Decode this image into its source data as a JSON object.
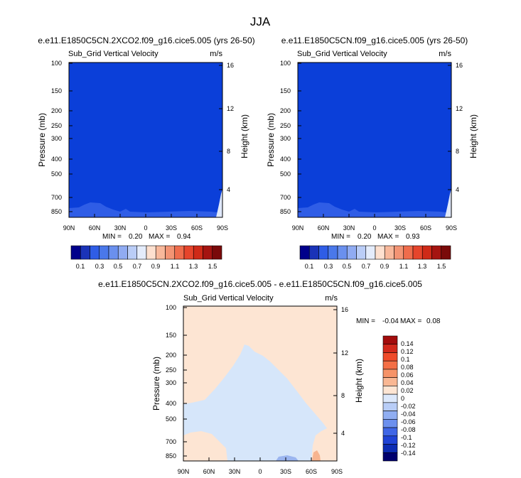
{
  "figure_title": "JJA",
  "colors": {
    "fill_top": "#0b3fd9",
    "fill_low_light": "#2f5de6",
    "fill_low_lighter": "#4a78ea",
    "diff_background": "#fde5d3",
    "diff_negative": "#d6e6fa",
    "diff_neg_deep": "#9bb5ef",
    "diff_pos_deep": "#f7b48f"
  },
  "chart_data": [
    {
      "type": "heatmap",
      "title": "e.e11.E1850C5CN.2XCO2.f09_g16.cice5.005 (yrs 26-50)",
      "subtitle": "Sub_Grid Vertical Velocity",
      "units": "m/s",
      "ylabel": "Pressure (mb)",
      "y2label": "Height (km)",
      "x_ticks": [
        "90N",
        "60N",
        "30N",
        "0",
        "30S",
        "60S",
        "90S"
      ],
      "y_ticks": [
        "100",
        "150",
        "200",
        "250",
        "300",
        "400",
        "500",
        "700",
        "850"
      ],
      "y2_ticks": [
        "16",
        "12",
        "8",
        "4"
      ],
      "stats": {
        "min_label": "MIN =",
        "min": "0.20",
        "max_label": "MAX =",
        "max": "0.94"
      },
      "dominant_value": 0.2,
      "colorbar_labels": [
        "0.1",
        "0.3",
        "0.5",
        "0.7",
        "0.9",
        "1.1",
        "1.3",
        "1.5"
      ]
    },
    {
      "type": "heatmap",
      "title": "e.e11.E1850C5CN.f09_g16.cice5.005 (yrs 26-50)",
      "subtitle": "Sub_Grid Vertical Velocity",
      "units": "m/s",
      "ylabel": "Pressure (mb)",
      "y2label": "Height (km)",
      "x_ticks": [
        "90N",
        "60N",
        "30N",
        "0",
        "30S",
        "60S",
        "90S"
      ],
      "y_ticks": [
        "100",
        "150",
        "200",
        "250",
        "300",
        "400",
        "500",
        "700",
        "850"
      ],
      "y2_ticks": [
        "16",
        "12",
        "8",
        "4"
      ],
      "stats": {
        "min_label": "MIN =",
        "min": "0.20",
        "max_label": "MAX =",
        "max": "0.93"
      },
      "dominant_value": 0.2,
      "colorbar_labels": [
        "0.1",
        "0.3",
        "0.5",
        "0.7",
        "0.9",
        "1.1",
        "1.3",
        "1.5"
      ]
    },
    {
      "type": "heatmap",
      "title": "e.e11.E1850C5CN.2XCO2.f09_g16.cice5.005 - e.e11.E1850C5CN.f09_g16.cice5.005",
      "subtitle": "Sub_Grid Vertical Velocity",
      "units": "m/s",
      "ylabel": "Pressure (mb)",
      "y2label": "Height (km)",
      "x_ticks": [
        "90N",
        "60N",
        "30N",
        "0",
        "30S",
        "60S",
        "90S"
      ],
      "y_ticks": [
        "100",
        "150",
        "200",
        "250",
        "300",
        "400",
        "500",
        "700",
        "850"
      ],
      "y2_ticks": [
        "16",
        "12",
        "8",
        "4"
      ],
      "stats": {
        "min_label": "MIN =",
        "min": "-0.04",
        "max_label": "MAX =",
        "max": "0.08"
      },
      "colorbar_labels": [
        "0.14",
        "0.12",
        "0.1",
        "0.08",
        "0.06",
        "0.04",
        "0.02",
        "0",
        "-0.02",
        "-0.04",
        "-0.06",
        "-0.08",
        "-0.1",
        "-0.12",
        "-0.14"
      ]
    }
  ],
  "colorbar_main": {
    "bins": [
      "#00008b",
      "#1a33b8",
      "#2f5de6",
      "#4a78ea",
      "#6a90ee",
      "#90abf2",
      "#bacdf7",
      "#e4ecfb",
      "#fde0cf",
      "#f8b89b",
      "#f39474",
      "#ef6c4c",
      "#e6452c",
      "#cf2a18",
      "#a51411",
      "#7a0a0a"
    ]
  },
  "colorbar_diff": {
    "bins": [
      "#a30c0c",
      "#d2281b",
      "#ef4b2a",
      "#f46f46",
      "#f69368",
      "#f9b793",
      "#fde5d3",
      "#dce8fb",
      "#b8cdf7",
      "#90aef2",
      "#6c90ee",
      "#3f66e6",
      "#1f43d6",
      "#0c2cb3",
      "#00006e"
    ]
  }
}
